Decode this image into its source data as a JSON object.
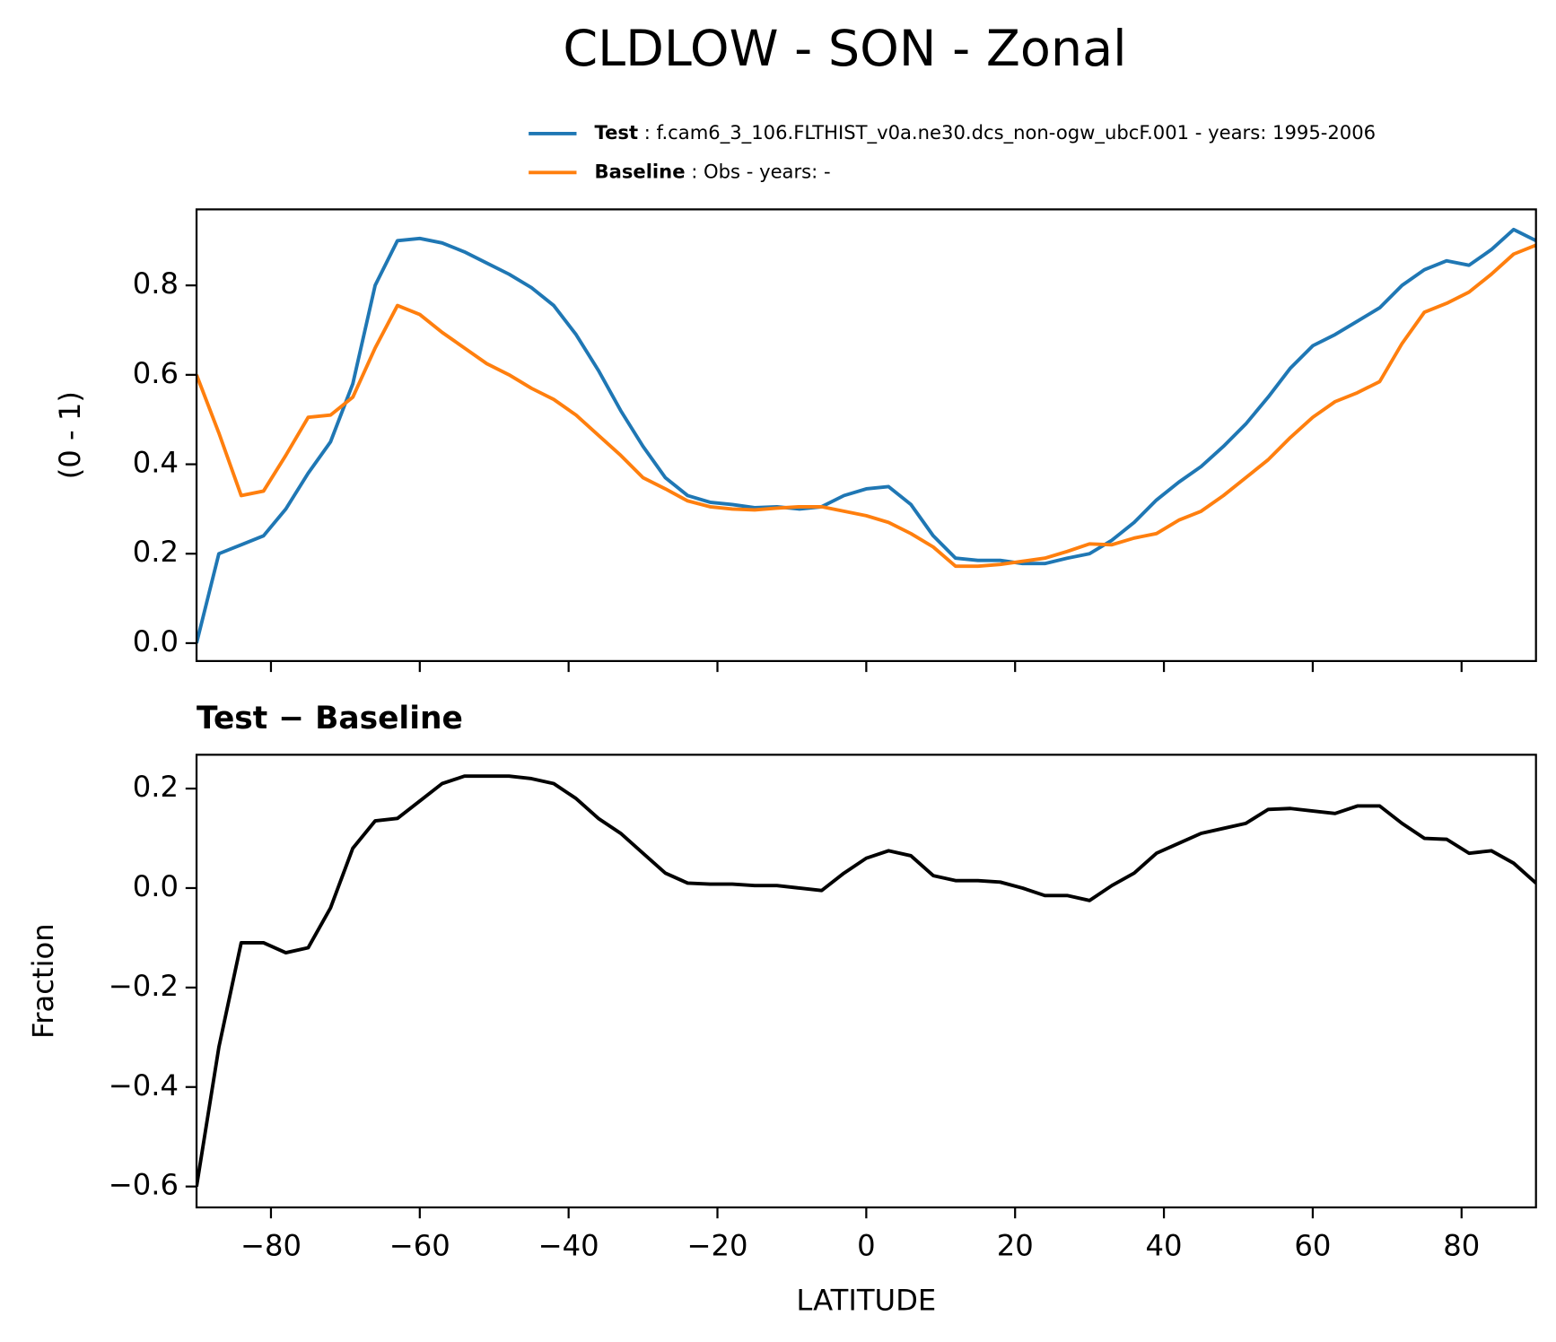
{
  "title": "CLDLOW - SON - Zonal",
  "chart_data": [
    {
      "type": "line",
      "ylabel": "(0 - 1)",
      "x": [
        -90,
        -87,
        -84,
        -81,
        -78,
        -75,
        -72,
        -69,
        -66,
        -63,
        -60,
        -57,
        -54,
        -51,
        -48,
        -45,
        -42,
        -39,
        -36,
        -33,
        -30,
        -27,
        -24,
        -21,
        -18,
        -15,
        -12,
        -9,
        -6,
        -3,
        0,
        3,
        6,
        9,
        12,
        15,
        18,
        21,
        24,
        27,
        30,
        33,
        36,
        39,
        42,
        45,
        48,
        51,
        54,
        57,
        60,
        63,
        66,
        69,
        72,
        75,
        78,
        81,
        84,
        87,
        90
      ],
      "series": [
        {
          "name": "Test",
          "detail": ": f.cam6_3_106.FLTHIST_v0a.ne30.dcs_non-ogw_ubcF.001 - years: 1995-2006",
          "color": "#1f77b4",
          "values": [
            0.0,
            0.2,
            0.22,
            0.24,
            0.3,
            0.38,
            0.45,
            0.58,
            0.8,
            0.9,
            0.905,
            0.895,
            0.875,
            0.85,
            0.825,
            0.795,
            0.755,
            0.69,
            0.61,
            0.52,
            0.44,
            0.37,
            0.33,
            0.315,
            0.31,
            0.303,
            0.305,
            0.3,
            0.305,
            0.33,
            0.345,
            0.35,
            0.31,
            0.24,
            0.19,
            0.185,
            0.185,
            0.178,
            0.178,
            0.19,
            0.2,
            0.23,
            0.27,
            0.32,
            0.36,
            0.395,
            0.44,
            0.49,
            0.55,
            0.615,
            0.665,
            0.69,
            0.72,
            0.75,
            0.8,
            0.835,
            0.855,
            0.845,
            0.88,
            0.925,
            0.9
          ]
        },
        {
          "name": "Baseline",
          "detail": ": Obs - years: -",
          "color": "#ff7f0e",
          "values": [
            0.6,
            0.47,
            0.33,
            0.34,
            0.42,
            0.505,
            0.51,
            0.55,
            0.66,
            0.755,
            0.735,
            0.695,
            0.66,
            0.625,
            0.6,
            0.57,
            0.545,
            0.51,
            0.465,
            0.42,
            0.37,
            0.345,
            0.318,
            0.305,
            0.3,
            0.298,
            0.302,
            0.305,
            0.305,
            0.295,
            0.285,
            0.27,
            0.245,
            0.215,
            0.172,
            0.172,
            0.176,
            0.183,
            0.19,
            0.205,
            0.222,
            0.22,
            0.235,
            0.245,
            0.275,
            0.295,
            0.33,
            0.37,
            0.41,
            0.46,
            0.505,
            0.54,
            0.56,
            0.585,
            0.67,
            0.74,
            0.76,
            0.785,
            0.825,
            0.87,
            0.89
          ]
        }
      ],
      "xlim": [
        -90,
        90
      ],
      "xticks": [
        -80,
        -60,
        -40,
        -20,
        0,
        20,
        40,
        60,
        80
      ],
      "ylim": [
        -0.04,
        0.97
      ],
      "yticks": [
        {
          "value": 0,
          "label": "0.0"
        },
        0.2,
        0.4,
        0.6,
        0.8
      ]
    },
    {
      "type": "line",
      "title": "Test − Baseline",
      "xlabel": "LATITUDE",
      "ylabel": "Fraction",
      "x": [
        -90,
        -87,
        -84,
        -81,
        -78,
        -75,
        -72,
        -69,
        -66,
        -63,
        -60,
        -57,
        -54,
        -51,
        -48,
        -45,
        -42,
        -39,
        -36,
        -33,
        -30,
        -27,
        -24,
        -21,
        -18,
        -15,
        -12,
        -9,
        -6,
        -3,
        0,
        3,
        6,
        9,
        12,
        15,
        18,
        21,
        24,
        27,
        30,
        33,
        36,
        39,
        42,
        45,
        48,
        51,
        54,
        57,
        60,
        63,
        66,
        69,
        72,
        75,
        78,
        81,
        84,
        87,
        90
      ],
      "series": [
        {
          "color": "#000000",
          "values": [
            -0.6,
            -0.32,
            -0.11,
            -0.11,
            -0.13,
            -0.12,
            -0.04,
            0.08,
            0.135,
            0.14,
            0.175,
            0.21,
            0.225,
            0.225,
            0.225,
            0.22,
            0.21,
            0.18,
            0.14,
            0.11,
            0.07,
            0.03,
            0.01,
            0.008,
            0.008,
            0.005,
            0.005,
            0.0,
            -0.005,
            0.03,
            0.06,
            0.075,
            0.065,
            0.025,
            0.015,
            0.015,
            0.012,
            0.0,
            -0.015,
            -0.015,
            -0.025,
            0.005,
            0.03,
            0.07,
            0.09,
            0.11,
            0.12,
            0.13,
            0.158,
            0.16,
            0.155,
            0.15,
            0.165,
            0.165,
            0.13,
            0.1,
            0.098,
            0.07,
            0.075,
            0.05,
            0.01
          ]
        }
      ],
      "xlim": [
        -90,
        90
      ],
      "xticks": [
        {
          "value": -80,
          "label": "−80"
        },
        {
          "value": -60,
          "label": "−60"
        },
        {
          "value": -40,
          "label": "−40"
        },
        {
          "value": -20,
          "label": "−20"
        },
        0,
        20,
        40,
        60,
        80
      ],
      "ylim": [
        -0.642,
        0.268
      ],
      "yticks": [
        {
          "value": -0.6,
          "label": "−0.6"
        },
        {
          "value": -0.4,
          "label": "−0.4"
        },
        {
          "value": -0.2,
          "label": "−0.2"
        },
        {
          "value": 0,
          "label": "0.0"
        },
        0.2
      ]
    }
  ]
}
